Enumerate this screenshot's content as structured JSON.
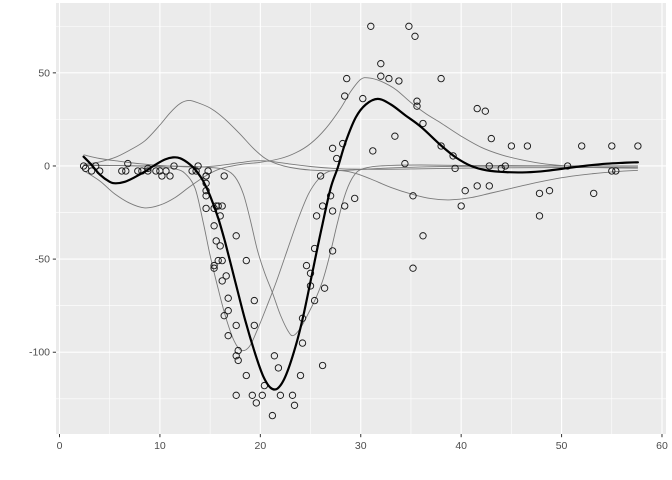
{
  "chart_data": {
    "type": "scatter",
    "title": "",
    "xlabel": "",
    "ylabel": "",
    "grid": "on",
    "legend": "none",
    "xlim": [
      -0.35,
      60.4
    ],
    "ylim": [
      -143.9,
      87.5
    ],
    "x_major_ticks": [
      0,
      10,
      20,
      30,
      40,
      50,
      60
    ],
    "y_major_ticks": [
      -100,
      -50,
      0,
      50
    ],
    "x_minor_ticks": [
      5,
      15,
      25,
      35,
      45,
      55
    ],
    "y_minor_ticks": [
      -125,
      -75,
      -25,
      25,
      75
    ],
    "x_tick_labels": [
      "0",
      "10",
      "20",
      "30",
      "40",
      "50",
      "60"
    ],
    "y_tick_labels": [
      "-100",
      "-50",
      "0",
      "50"
    ],
    "points": [
      [
        2.4,
        0.0
      ],
      [
        2.6,
        -1.3
      ],
      [
        3.2,
        -2.7
      ],
      [
        3.6,
        0.0
      ],
      [
        4.0,
        -2.7
      ],
      [
        6.2,
        -2.7
      ],
      [
        6.6,
        -2.7
      ],
      [
        6.8,
        1.3
      ],
      [
        7.8,
        -2.7
      ],
      [
        8.2,
        -2.7
      ],
      [
        8.8,
        -1.3
      ],
      [
        8.8,
        -2.7
      ],
      [
        9.6,
        -2.7
      ],
      [
        10.0,
        -2.7
      ],
      [
        10.2,
        -5.4
      ],
      [
        10.6,
        -2.7
      ],
      [
        11.0,
        -5.4
      ],
      [
        11.4,
        0.0
      ],
      [
        13.2,
        -2.7
      ],
      [
        13.6,
        -2.7
      ],
      [
        13.8,
        0.0
      ],
      [
        14.6,
        -13.3
      ],
      [
        14.6,
        -5.4
      ],
      [
        14.6,
        -5.4
      ],
      [
        14.6,
        -9.3
      ],
      [
        14.6,
        -16.0
      ],
      [
        14.6,
        -22.8
      ],
      [
        14.8,
        -2.7
      ],
      [
        15.4,
        -22.8
      ],
      [
        15.4,
        -32.1
      ],
      [
        15.4,
        -53.5
      ],
      [
        15.4,
        -54.9
      ],
      [
        15.6,
        -40.2
      ],
      [
        15.6,
        -21.5
      ],
      [
        15.8,
        -21.5
      ],
      [
        15.8,
        -50.8
      ],
      [
        16.0,
        -42.9
      ],
      [
        16.0,
        -26.8
      ],
      [
        16.2,
        -21.5
      ],
      [
        16.2,
        -50.8
      ],
      [
        16.2,
        -61.7
      ],
      [
        16.4,
        -5.4
      ],
      [
        16.4,
        -80.4
      ],
      [
        16.6,
        -59.0
      ],
      [
        16.8,
        -71.0
      ],
      [
        16.8,
        -91.1
      ],
      [
        16.8,
        -77.7
      ],
      [
        17.6,
        -37.5
      ],
      [
        17.6,
        -85.6
      ],
      [
        17.6,
        -123.1
      ],
      [
        17.6,
        -101.9
      ],
      [
        17.8,
        -99.1
      ],
      [
        17.8,
        -104.4
      ],
      [
        18.6,
        -112.5
      ],
      [
        18.6,
        -50.8
      ],
      [
        19.2,
        -123.1
      ],
      [
        19.4,
        -85.6
      ],
      [
        19.4,
        -72.3
      ],
      [
        19.6,
        -127.2
      ],
      [
        20.2,
        -123.1
      ],
      [
        20.4,
        -117.9
      ],
      [
        21.2,
        -134.0
      ],
      [
        21.4,
        -101.9
      ],
      [
        21.8,
        -108.4
      ],
      [
        22.0,
        -123.1
      ],
      [
        23.2,
        -123.1
      ],
      [
        23.4,
        -128.5
      ],
      [
        24.0,
        -112.5
      ],
      [
        24.2,
        -95.1
      ],
      [
        24.2,
        -81.8
      ],
      [
        24.6,
        -53.5
      ],
      [
        25.0,
        -64.4
      ],
      [
        25.0,
        -57.6
      ],
      [
        25.4,
        -72.3
      ],
      [
        25.4,
        -44.3
      ],
      [
        25.6,
        -26.8
      ],
      [
        26.0,
        -5.4
      ],
      [
        26.2,
        -107.1
      ],
      [
        26.2,
        -21.5
      ],
      [
        26.4,
        -65.6
      ],
      [
        27.0,
        -16.0
      ],
      [
        27.2,
        -45.6
      ],
      [
        27.2,
        -24.2
      ],
      [
        27.2,
        9.5
      ],
      [
        27.6,
        4.0
      ],
      [
        28.2,
        12.0
      ],
      [
        28.4,
        -21.5
      ],
      [
        28.4,
        37.5
      ],
      [
        28.6,
        46.9
      ],
      [
        29.4,
        -17.4
      ],
      [
        30.2,
        36.2
      ],
      [
        31.0,
        75.0
      ],
      [
        31.2,
        8.1
      ],
      [
        32.0,
        54.9
      ],
      [
        32.0,
        48.2
      ],
      [
        32.8,
        46.9
      ],
      [
        33.4,
        16.0
      ],
      [
        33.8,
        45.6
      ],
      [
        34.4,
        1.3
      ],
      [
        34.8,
        75.0
      ],
      [
        35.2,
        -16.0
      ],
      [
        35.2,
        -54.9
      ],
      [
        35.4,
        69.6
      ],
      [
        35.6,
        34.8
      ],
      [
        35.6,
        32.1
      ],
      [
        36.2,
        -37.5
      ],
      [
        36.2,
        22.8
      ],
      [
        38.0,
        46.9
      ],
      [
        38.0,
        10.7
      ],
      [
        39.2,
        5.4
      ],
      [
        39.4,
        -1.3
      ],
      [
        40.0,
        -21.5
      ],
      [
        40.4,
        -13.3
      ],
      [
        41.6,
        30.8
      ],
      [
        41.6,
        -10.7
      ],
      [
        42.4,
        29.4
      ],
      [
        42.8,
        0.0
      ],
      [
        42.8,
        -10.7
      ],
      [
        43.0,
        14.7
      ],
      [
        44.0,
        -1.3
      ],
      [
        44.4,
        0.0
      ],
      [
        45.0,
        10.7
      ],
      [
        46.6,
        10.7
      ],
      [
        47.8,
        -26.8
      ],
      [
        47.8,
        -14.7
      ],
      [
        48.8,
        -13.3
      ],
      [
        50.6,
        0.0
      ],
      [
        52.0,
        10.7
      ],
      [
        53.2,
        -14.7
      ],
      [
        55.0,
        -2.7
      ],
      [
        55.0,
        10.7
      ],
      [
        55.4,
        -2.7
      ],
      [
        57.6,
        10.7
      ]
    ],
    "fit_line": {
      "name": "smooth-fit",
      "points": [
        [
          2.4,
          5
        ],
        [
          3.2,
          0.5
        ],
        [
          4.0,
          -4.5
        ],
        [
          5.0,
          -8.5
        ],
        [
          5.6,
          -9.3
        ],
        [
          6.5,
          -8.5
        ],
        [
          7.5,
          -6
        ],
        [
          8.5,
          -3
        ],
        [
          9.5,
          0.5
        ],
        [
          10.5,
          3.5
        ],
        [
          11.3,
          4.6
        ],
        [
          12.0,
          4.2
        ],
        [
          13.0,
          0.8
        ],
        [
          13.6,
          -2.5
        ],
        [
          14.3,
          -8
        ],
        [
          15.0,
          -16
        ],
        [
          15.8,
          -28
        ],
        [
          16.5,
          -41
        ],
        [
          17.5,
          -62
        ],
        [
          18.5,
          -83
        ],
        [
          19.5,
          -101
        ],
        [
          20.3,
          -113
        ],
        [
          21.0,
          -119
        ],
        [
          21.7,
          -119.5
        ],
        [
          22.5,
          -113
        ],
        [
          23.5,
          -97
        ],
        [
          24.3,
          -80
        ],
        [
          25.3,
          -54
        ],
        [
          26.2,
          -31
        ],
        [
          27.0,
          -12
        ],
        [
          27.7,
          -1
        ],
        [
          28.5,
          13
        ],
        [
          29.5,
          26
        ],
        [
          30.5,
          33
        ],
        [
          31.7,
          36
        ],
        [
          33.0,
          33
        ],
        [
          34.5,
          27
        ],
        [
          36.0,
          21
        ],
        [
          38.0,
          11
        ],
        [
          39.5,
          4.5
        ],
        [
          41.0,
          0
        ],
        [
          42.5,
          -2.3
        ],
        [
          44.5,
          -3.3
        ],
        [
          46.5,
          -3.4
        ],
        [
          48.5,
          -2.6
        ],
        [
          50.5,
          -1.2
        ],
        [
          52.5,
          0.2
        ],
        [
          54.5,
          1.2
        ],
        [
          56.5,
          1.8
        ],
        [
          57.6,
          2
        ]
      ]
    },
    "component_lines": [
      {
        "name": "component-bell-12",
        "points": [
          [
            2.4,
            0.8
          ],
          [
            4,
            2.2
          ],
          [
            5.5,
            4.5
          ],
          [
            7,
            8.5
          ],
          [
            8.5,
            13.5
          ],
          [
            10,
            22
          ],
          [
            11,
            28.5
          ],
          [
            12,
            33.5
          ],
          [
            12.9,
            35.2
          ],
          [
            14,
            33.5
          ],
          [
            15.2,
            30.5
          ],
          [
            16.5,
            25
          ],
          [
            18,
            17
          ],
          [
            19.3,
            9.5
          ],
          [
            20.5,
            4
          ],
          [
            21.7,
            1
          ],
          [
            23,
            -0.8
          ],
          [
            25,
            -2.2
          ],
          [
            27,
            -2.6
          ],
          [
            29,
            -2.2
          ],
          [
            32,
            -1.3
          ],
          [
            36,
            -0.5
          ],
          [
            42,
            -0.1
          ],
          [
            50,
            0
          ],
          [
            57.6,
            0
          ]
        ]
      },
      {
        "name": "component-dip9-bell-30",
        "points": [
          [
            2.4,
            -2.5
          ],
          [
            4,
            -8
          ],
          [
            5.5,
            -15
          ],
          [
            7,
            -20
          ],
          [
            8.5,
            -22.5
          ],
          [
            10,
            -21
          ],
          [
            11.5,
            -17
          ],
          [
            13,
            -11
          ],
          [
            14.5,
            -5.5
          ],
          [
            16,
            -1.5
          ],
          [
            18,
            0.8
          ],
          [
            20,
            2
          ],
          [
            22,
            4
          ],
          [
            23.5,
            7
          ],
          [
            25,
            12
          ],
          [
            26.5,
            20
          ],
          [
            28,
            31
          ],
          [
            29,
            40
          ],
          [
            30,
            46.5
          ],
          [
            30.8,
            47.3
          ],
          [
            32,
            45.5
          ],
          [
            33.5,
            41
          ],
          [
            35,
            34
          ],
          [
            36.5,
            28
          ],
          [
            38,
            23
          ],
          [
            40,
            16
          ],
          [
            42,
            10
          ],
          [
            44,
            6
          ],
          [
            46,
            3.3
          ],
          [
            48,
            1.4
          ],
          [
            50,
            0.2
          ],
          [
            52,
            -0.6
          ],
          [
            54.5,
            -1
          ],
          [
            57.6,
            -1.2
          ]
        ]
      },
      {
        "name": "component-trough-18",
        "points": [
          [
            2.4,
            0.5
          ],
          [
            5,
            0.3
          ],
          [
            8,
            0
          ],
          [
            10,
            -0.5
          ],
          [
            11.5,
            -1.5
          ],
          [
            12.5,
            -4
          ],
          [
            13.5,
            -12
          ],
          [
            14.3,
            -30
          ],
          [
            15,
            -48
          ],
          [
            15.8,
            -66
          ],
          [
            16.6,
            -82
          ],
          [
            17.4,
            -94
          ],
          [
            18.1,
            -99
          ],
          [
            18.9,
            -97
          ],
          [
            19.7,
            -88
          ],
          [
            20.6,
            -76
          ],
          [
            21.6,
            -62
          ],
          [
            22.7,
            -45
          ],
          [
            23.8,
            -28
          ],
          [
            24.8,
            -15
          ],
          [
            25.8,
            -7
          ],
          [
            26.8,
            -3
          ],
          [
            28,
            -2.5
          ],
          [
            29.5,
            -4
          ],
          [
            31,
            -7
          ],
          [
            33,
            -11.5
          ],
          [
            35,
            -15
          ],
          [
            37,
            -17.5
          ],
          [
            38.8,
            -18.2
          ],
          [
            41,
            -17
          ],
          [
            43,
            -14.5
          ],
          [
            45,
            -12
          ],
          [
            47,
            -9.5
          ],
          [
            49,
            -7.3
          ],
          [
            51,
            -5.5
          ],
          [
            53,
            -4.2
          ],
          [
            55,
            -3.2
          ],
          [
            57.6,
            -2.3
          ]
        ]
      },
      {
        "name": "component-trough-23",
        "points": [
          [
            2.4,
            0.3
          ],
          [
            6,
            0.2
          ],
          [
            10,
            0
          ],
          [
            13,
            -0.2
          ],
          [
            15,
            -0.8
          ],
          [
            16.5,
            -2
          ],
          [
            17.5,
            -6
          ],
          [
            18.3,
            -15
          ],
          [
            19,
            -29
          ],
          [
            19.7,
            -45
          ],
          [
            20.4,
            -57
          ],
          [
            21.2,
            -68
          ],
          [
            22,
            -80
          ],
          [
            22.8,
            -89
          ],
          [
            23.3,
            -91
          ],
          [
            24,
            -87
          ],
          [
            24.8,
            -79
          ],
          [
            25.6,
            -70
          ],
          [
            26.3,
            -60
          ],
          [
            27,
            -46
          ],
          [
            27.7,
            -30
          ],
          [
            28.4,
            -16
          ],
          [
            29.1,
            -7
          ],
          [
            29.8,
            -2.5
          ],
          [
            31,
            -0.5
          ],
          [
            33,
            0.3
          ],
          [
            36,
            0.5
          ],
          [
            40,
            0.3
          ],
          [
            45,
            0.2
          ],
          [
            50,
            0.1
          ],
          [
            57.6,
            0
          ]
        ]
      },
      {
        "name": "component-flat",
        "points": [
          [
            2.4,
            6
          ],
          [
            4,
            4
          ],
          [
            6,
            2.5
          ],
          [
            8,
            1.2
          ],
          [
            10,
            0.3
          ],
          [
            12,
            -0.3
          ],
          [
            14,
            -0.5
          ],
          [
            16,
            0.3
          ],
          [
            18,
            1.8
          ],
          [
            19.5,
            2.8
          ],
          [
            21,
            2.5
          ],
          [
            23,
            1
          ],
          [
            25,
            -0.3
          ],
          [
            27,
            -1.2
          ],
          [
            29,
            -1.7
          ],
          [
            32,
            -1.8
          ],
          [
            36,
            -1.5
          ],
          [
            40,
            -1.2
          ],
          [
            44,
            -1
          ],
          [
            48,
            -0.9
          ],
          [
            52,
            -0.8
          ],
          [
            57.6,
            -0.7
          ]
        ]
      }
    ],
    "style": {
      "panel_bg": "#EBEBEB",
      "outer_bg": "#FFFFFF",
      "grid_major": "#FFFFFF",
      "grid_minor": "#FFFFFF",
      "point_color": "#1a1a1a",
      "fit_color": "#000000",
      "component_color": "#7a7a7a",
      "tick_label_color": "#4D4D4D",
      "tick_mark_color": "#333333"
    }
  }
}
